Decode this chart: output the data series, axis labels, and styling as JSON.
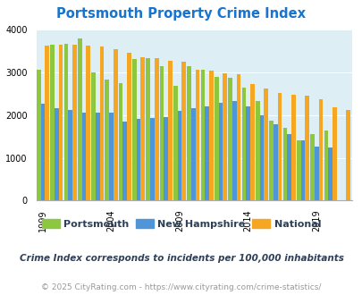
{
  "title": "Portsmouth Property Crime Index",
  "years": [
    1999,
    2000,
    2001,
    2002,
    2003,
    2004,
    2005,
    2006,
    2007,
    2008,
    2009,
    2010,
    2011,
    2012,
    2013,
    2014,
    2015,
    2016,
    2017,
    2018,
    2019,
    2020,
    2021
  ],
  "portsmouth": [
    3050,
    3650,
    3660,
    3800,
    3000,
    2840,
    2750,
    3310,
    3340,
    3140,
    2680,
    3140,
    3060,
    2890,
    2880,
    2650,
    2330,
    1870,
    1700,
    1400,
    1550,
    1630,
    0
  ],
  "new_hampshire": [
    2270,
    2160,
    2110,
    2060,
    2060,
    2060,
    1840,
    1900,
    1940,
    1950,
    2090,
    2160,
    2200,
    2280,
    2320,
    2210,
    2000,
    1780,
    1550,
    1400,
    1270,
    1250,
    0
  ],
  "national": [
    3620,
    3640,
    3640,
    3630,
    3610,
    3550,
    3460,
    3350,
    3340,
    3260,
    3250,
    3060,
    3040,
    2970,
    2960,
    2730,
    2620,
    2520,
    2480,
    2460,
    2360,
    2180,
    2110
  ],
  "colors": {
    "portsmouth": "#8dc63f",
    "new_hampshire": "#4f96d8",
    "national": "#f5a623"
  },
  "ylim": [
    0,
    4000
  ],
  "yticks": [
    0,
    1000,
    2000,
    3000,
    4000
  ],
  "xtick_years": [
    1999,
    2004,
    2009,
    2014,
    2019
  ],
  "plot_bg": "#ddeef5",
  "legend_labels": [
    "Portsmouth",
    "New Hampshire",
    "National"
  ],
  "note": "Crime Index corresponds to incidents per 100,000 inhabitants",
  "footer": "© 2025 CityRating.com - https://www.cityrating.com/crime-statistics/",
  "title_color": "#1874cd",
  "note_color": "#2e4057",
  "footer_color": "#999999",
  "title_fontsize": 10.5,
  "legend_fontsize": 8,
  "note_fontsize": 7.5,
  "footer_fontsize": 6.5
}
